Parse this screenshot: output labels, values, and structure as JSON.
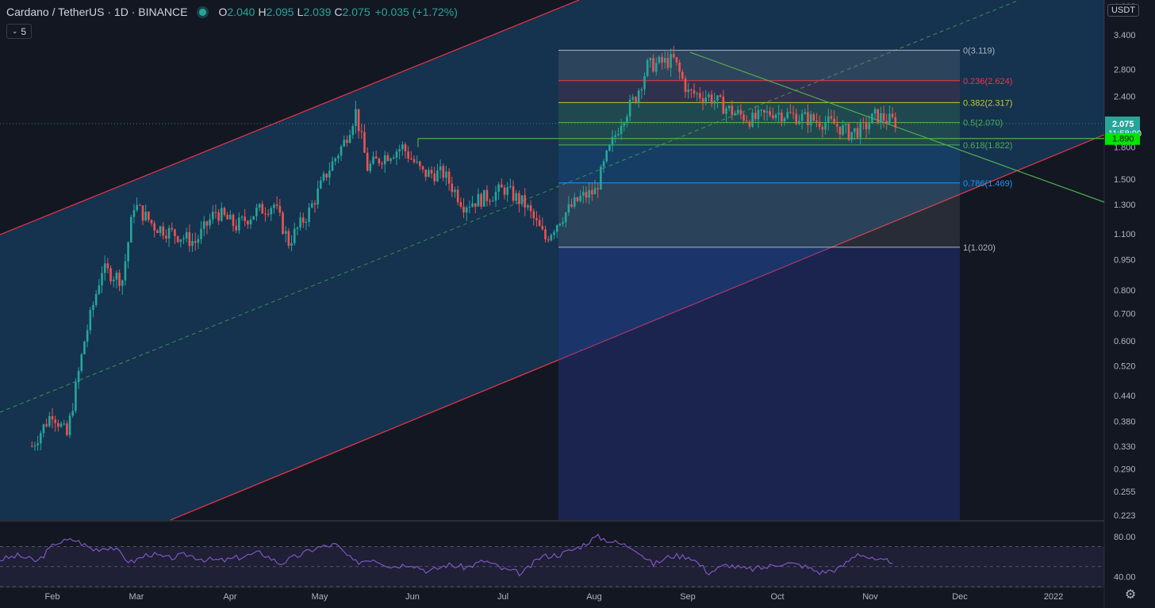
{
  "header": {
    "title": "Cardano / TetherUS · 1D · BINANCE",
    "o_label": "O",
    "o": "2.040",
    "h_label": "H",
    "h": "2.095",
    "l_label": "L",
    "l": "2.039",
    "c_label": "C",
    "c": "2.075",
    "change": "+0.035 (+1.72%)"
  },
  "indicator_toggle": "5",
  "currency_label": "USDT",
  "colors": {
    "up": "#26a69a",
    "down": "#ef5350",
    "channel": "#f23645",
    "rsi": "#7e57c2",
    "fib_green": "#4caf50"
  },
  "chart_data": {
    "type": "candlestick",
    "scale": "log",
    "x_axis_labels": [
      "Feb",
      "Mar",
      "Apr",
      "May",
      "Jun",
      "Jul",
      "Aug",
      "Sep",
      "Oct",
      "Nov",
      "Dec",
      "2022"
    ],
    "y_axis_labels": [
      "4.000",
      "3.400",
      "2.800",
      "2.400",
      "1.800",
      "1.500",
      "1.300",
      "1.100",
      "0.950",
      "0.800",
      "0.700",
      "0.600",
      "0.520",
      "0.440",
      "0.380",
      "0.330",
      "0.290",
      "0.255",
      "0.223"
    ],
    "last_price": "2.075",
    "countdown": "11:58:00",
    "horizontal_level": "1.890",
    "fib_levels": [
      {
        "ratio": "0",
        "price": 3.119,
        "label": "0(3.119)",
        "color": "#b2b5be"
      },
      {
        "ratio": "0.236",
        "price": 2.624,
        "label": "0.236(2.624)",
        "color": "#f23645"
      },
      {
        "ratio": "0.382",
        "price": 2.317,
        "label": "0.382(2.317)",
        "color": "#c0ca33"
      },
      {
        "ratio": "0.5",
        "price": 2.07,
        "label": "0.5(2.070)",
        "color": "#4caf50"
      },
      {
        "ratio": "0.618",
        "price": 1.822,
        "label": "0.618(1.822)",
        "color": "#4caf50"
      },
      {
        "ratio": "0.786",
        "price": 1.469,
        "label": "0.786(1.469)",
        "color": "#2196f3"
      },
      {
        "ratio": "1",
        "price": 1.02,
        "label": "1(1.020)",
        "color": "#b2b5be"
      }
    ],
    "price_path": [
      [
        "2021-01-25",
        0.33
      ],
      [
        "2021-02-01",
        0.4
      ],
      [
        "2021-02-06",
        0.35
      ],
      [
        "2021-02-12",
        0.6
      ],
      [
        "2021-02-18",
        0.9
      ],
      [
        "2021-02-25",
        0.85
      ],
      [
        "2021-03-01",
        1.3
      ],
      [
        "2021-03-08",
        1.15
      ],
      [
        "2021-03-15",
        1.1
      ],
      [
        "2021-03-22",
        1.05
      ],
      [
        "2021-03-29",
        1.25
      ],
      [
        "2021-04-05",
        1.15
      ],
      [
        "2021-04-12",
        1.25
      ],
      [
        "2021-04-18",
        1.3
      ],
      [
        "2021-04-23",
        1.05
      ],
      [
        "2021-04-30",
        1.25
      ],
      [
        "2021-05-06",
        1.55
      ],
      [
        "2021-05-12",
        1.85
      ],
      [
        "2021-05-16",
        2.2
      ],
      [
        "2021-05-20",
        1.6
      ],
      [
        "2021-05-25",
        1.7
      ],
      [
        "2021-06-01",
        1.8
      ],
      [
        "2021-06-08",
        1.55
      ],
      [
        "2021-06-15",
        1.55
      ],
      [
        "2021-06-22",
        1.3
      ],
      [
        "2021-06-29",
        1.35
      ],
      [
        "2021-07-06",
        1.42
      ],
      [
        "2021-07-13",
        1.3
      ],
      [
        "2021-07-20",
        1.07
      ],
      [
        "2021-07-25",
        1.2
      ],
      [
        "2021-08-01",
        1.35
      ],
      [
        "2021-08-06",
        1.4
      ],
      [
        "2021-08-10",
        1.7
      ],
      [
        "2021-08-15",
        2.1
      ],
      [
        "2021-08-20",
        2.4
      ],
      [
        "2021-08-24",
        2.85
      ],
      [
        "2021-09-02",
        2.95
      ],
      [
        "2021-09-07",
        2.45
      ],
      [
        "2021-09-14",
        2.4
      ],
      [
        "2021-09-22",
        2.2
      ],
      [
        "2021-09-29",
        2.1
      ],
      [
        "2021-10-06",
        2.2
      ],
      [
        "2021-10-13",
        2.15
      ],
      [
        "2021-10-20",
        2.1
      ],
      [
        "2021-10-27",
        2.05
      ],
      [
        "2021-11-01",
        1.95
      ],
      [
        "2021-11-06",
        2.0
      ],
      [
        "2021-11-10",
        2.15
      ],
      [
        "2021-11-17",
        2.075
      ]
    ],
    "rsi": {
      "labels": [
        "80.00",
        "40.00"
      ],
      "path": [
        57,
        61,
        55,
        74,
        77,
        67,
        70,
        54,
        63,
        58,
        62,
        57,
        56,
        60,
        64,
        53,
        61,
        69,
        72,
        54,
        58,
        50,
        53,
        45,
        52,
        49,
        56,
        47,
        43,
        60,
        62,
        69,
        80,
        74,
        69,
        52,
        61,
        60,
        44,
        52,
        47,
        49,
        54,
        51,
        44,
        48,
        64,
        55,
        56
      ]
    }
  }
}
